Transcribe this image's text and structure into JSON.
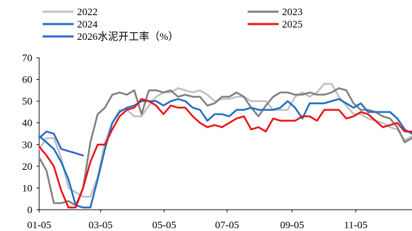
{
  "chart_data": {
    "type": "line",
    "title": "",
    "xlabel": "",
    "ylabel": "",
    "ylim": [
      0,
      70
    ],
    "yticks": [
      0,
      10,
      20,
      30,
      40,
      50,
      60,
      70
    ],
    "xlim": [
      0,
      51
    ],
    "xticks": [
      {
        "label": "01-05",
        "x": 0
      },
      {
        "label": "03-05",
        "x": 8.4
      },
      {
        "label": "05-05",
        "x": 17.1
      },
      {
        "label": "07-05",
        "x": 25.7
      },
      {
        "label": "09-05",
        "x": 34.6
      },
      {
        "label": "11-05",
        "x": 43.3
      }
    ],
    "legend_position": "top",
    "series": [
      {
        "name": "2022",
        "color": "#bfbfbf",
        "x": [
          0,
          1,
          2,
          3,
          4,
          5,
          6,
          7,
          8,
          9,
          10,
          11,
          12,
          13,
          14,
          15,
          16,
          17,
          18,
          19,
          20,
          21,
          22,
          23,
          24,
          25,
          26,
          27,
          28,
          29,
          30,
          31,
          32,
          33,
          34,
          35,
          36,
          37,
          38,
          39,
          40,
          41,
          42,
          43,
          44,
          45,
          46,
          47,
          48,
          49,
          50,
          51
        ],
        "values": [
          28,
          33,
          33,
          24,
          10,
          8,
          6,
          6,
          15,
          31,
          40,
          46,
          46,
          43,
          43,
          48,
          52,
          54,
          54,
          56,
          55,
          54,
          55,
          53,
          50,
          51,
          51,
          52,
          52,
          50,
          50,
          50,
          46,
          46,
          46,
          52,
          54,
          52,
          54,
          58,
          58,
          52,
          48,
          44,
          44,
          42,
          41,
          40,
          38,
          37,
          32,
          34
        ]
      },
      {
        "name": "2023",
        "color": "#7f7f7f",
        "x": [
          0,
          1,
          2,
          3,
          4,
          5,
          6,
          7,
          8,
          9,
          10,
          11,
          12,
          13,
          14,
          15,
          16,
          17,
          18,
          19,
          20,
          21,
          22,
          23,
          24,
          25,
          26,
          27,
          28,
          29,
          30,
          31,
          32,
          33,
          34,
          35,
          36,
          37,
          38,
          39,
          40,
          41,
          42,
          43,
          44,
          45,
          46,
          47,
          48,
          49,
          50,
          51
        ],
        "values": [
          24,
          18,
          3,
          3,
          4,
          2,
          10,
          31,
          44,
          47,
          53,
          54,
          53,
          55,
          44,
          55,
          55,
          54,
          55,
          52,
          53,
          52,
          52,
          48,
          49,
          52,
          52,
          54,
          52,
          47,
          43,
          48,
          52,
          54,
          54,
          53,
          53,
          54,
          53,
          53,
          54,
          56,
          55,
          49,
          46,
          46,
          45,
          43,
          42,
          38,
          31,
          33
        ]
      },
      {
        "name": "2024",
        "color": "#1f6fc0",
        "x": [
          0,
          1,
          2,
          3,
          4,
          5,
          6,
          7,
          8,
          9,
          10,
          11,
          12,
          13,
          14,
          15,
          16,
          17,
          18,
          19,
          20,
          21,
          22,
          23,
          24,
          25,
          26,
          27,
          28,
          29,
          30,
          31,
          32,
          33,
          34,
          35,
          36,
          37,
          38,
          39,
          40,
          41,
          42,
          43,
          44,
          45,
          46,
          47,
          48,
          49,
          50,
          51
        ],
        "values": [
          34,
          31,
          28,
          22,
          14,
          2,
          1,
          1,
          14,
          28,
          40,
          45,
          47,
          48,
          50,
          50,
          50,
          48,
          50,
          51,
          50,
          47,
          46,
          41,
          44,
          44,
          43,
          46,
          46,
          47,
          46,
          46,
          46,
          47,
          50,
          47,
          42,
          49,
          49,
          49,
          50,
          51,
          49,
          47,
          49,
          45,
          45,
          45,
          45,
          42,
          37,
          35
        ]
      },
      {
        "name": "2025",
        "color": "#e8141c",
        "x": [
          0,
          1,
          2,
          3,
          4,
          5,
          6,
          7,
          8,
          9,
          10,
          11,
          12,
          13,
          14,
          15,
          16,
          17,
          18,
          19,
          20,
          21,
          22,
          23,
          24,
          25,
          26,
          27,
          28,
          29,
          30,
          31,
          32,
          33,
          34,
          35,
          36,
          37,
          38,
          39,
          40,
          41,
          42,
          43,
          44,
          45,
          46,
          47,
          48,
          49,
          50,
          51
        ],
        "values": [
          29,
          25,
          20,
          9,
          1,
          1,
          10,
          22,
          30,
          30,
          37,
          43,
          46,
          47,
          51,
          50,
          48,
          44,
          48,
          47,
          47,
          43,
          40,
          38,
          39,
          38,
          40,
          42,
          43,
          37,
          38,
          36,
          42,
          41,
          41,
          41,
          43,
          43,
          41,
          46,
          46,
          46,
          42,
          43,
          45,
          44,
          41,
          38,
          39,
          40,
          36,
          36
        ]
      },
      {
        "name": "2026水泥开工率（%）",
        "color": "#2f62d6",
        "x": [
          0,
          1,
          2,
          3,
          4,
          5,
          6
        ],
        "values": [
          33,
          36,
          35,
          28,
          27,
          26,
          25
        ]
      }
    ]
  }
}
